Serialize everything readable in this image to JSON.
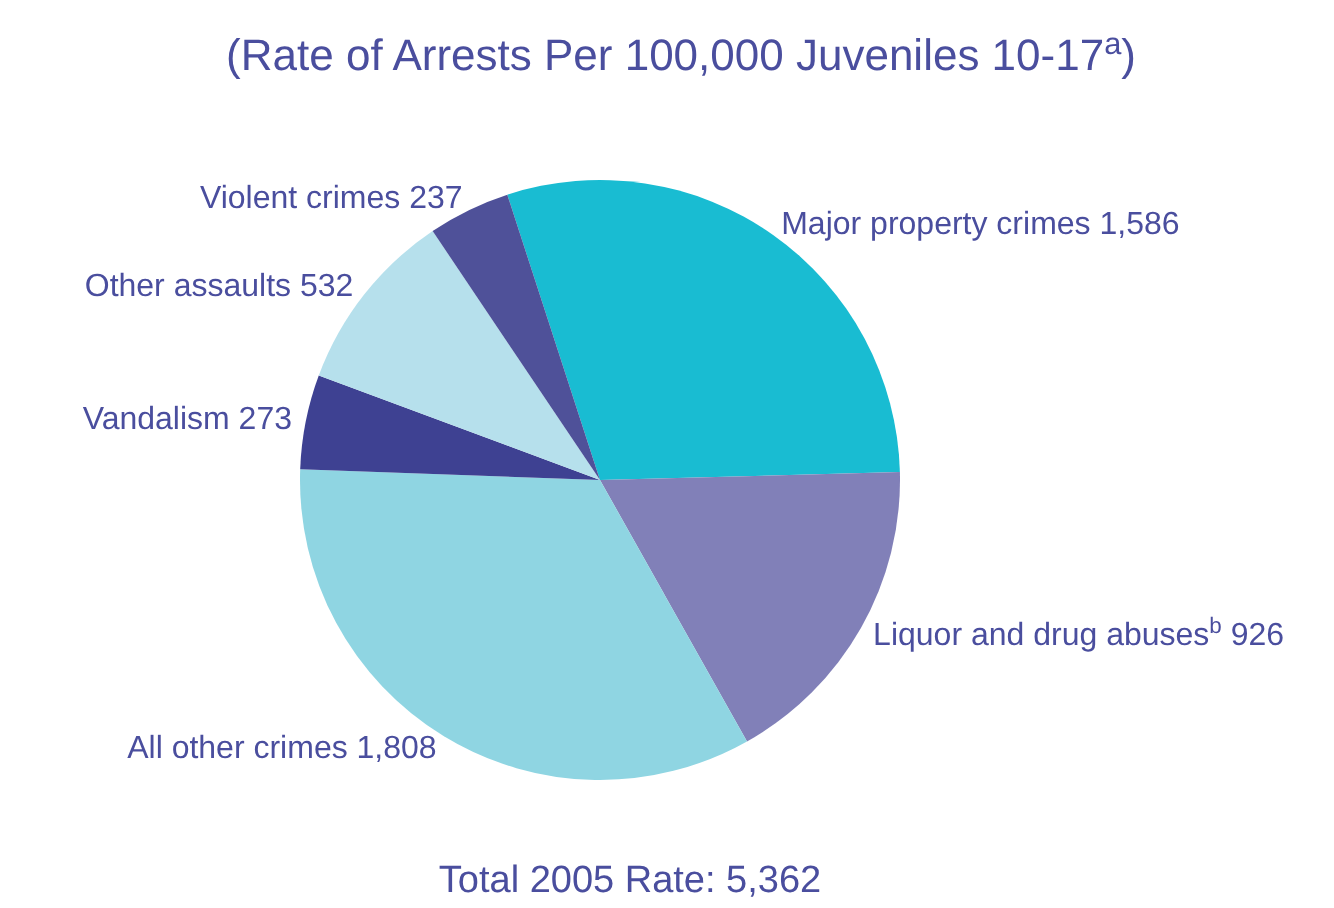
{
  "chart_data": {
    "type": "pie",
    "title": "(Rate of Arrests Per 100,000 Juveniles 10-17$^{a}$)",
    "categories": [
      "Major property crimes",
      "Liquor and drug abuses$^{b}$",
      "All other crimes",
      "Vandalism",
      "Other assaults",
      "Violent crimes"
    ],
    "values": [
      1586,
      926,
      1808,
      273,
      532,
      237
    ],
    "colors": [
      "#19bcd2",
      "#8180b8",
      "#8fd5e2",
      "#3e4192",
      "#b6e0ec",
      "#4f5199"
    ],
    "value_labels": [
      "1,586",
      "926",
      "1,808",
      "273",
      "532",
      "237"
    ],
    "annotations": [
      "Total 2005 Rate:  5,362"
    ]
  }
}
